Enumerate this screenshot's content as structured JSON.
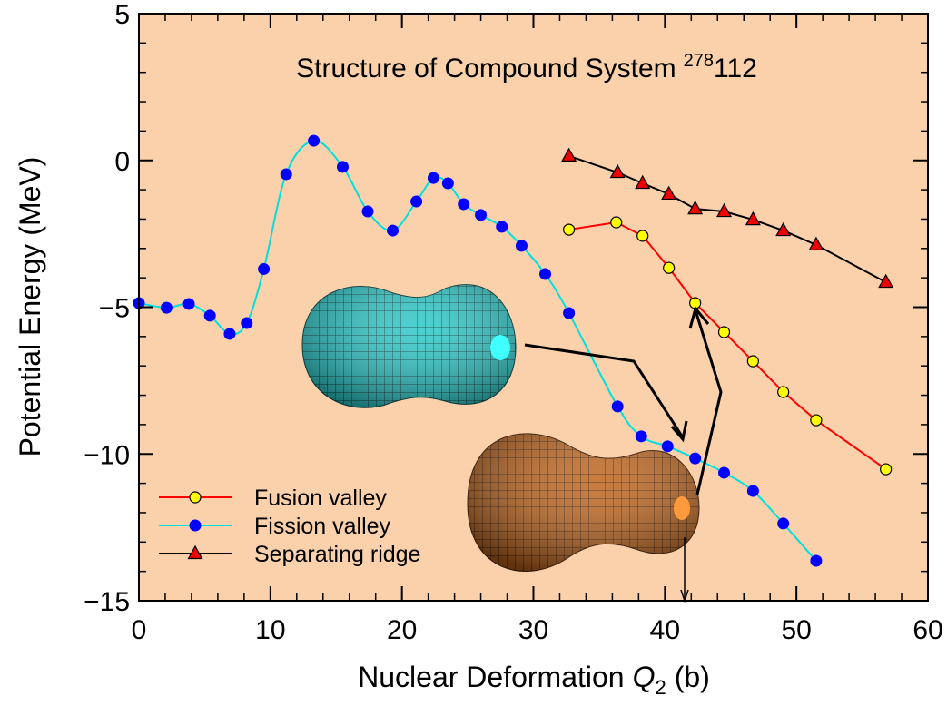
{
  "chart_data": {
    "type": "line",
    "title": {
      "text": "Structure of Compound System",
      "superscript": "278",
      "after": "112"
    },
    "xlabel": {
      "text": "Nuclear Deformation",
      "symbol": "Q",
      "subscript": "2",
      "unit": "(b)"
    },
    "ylabel": "Potential Energy (MeV)",
    "xlim": [
      0,
      60
    ],
    "ylim": [
      -15,
      5
    ],
    "xticks": [
      0,
      10,
      20,
      30,
      40,
      50,
      60
    ],
    "yticks": [
      {
        "value": -15,
        "label": "−15"
      },
      {
        "value": -10,
        "label": "−10"
      },
      {
        "value": -5,
        "label": "−5"
      },
      0,
      5
    ],
    "xminorticks": [
      2,
      4,
      6,
      8,
      12,
      14,
      16,
      18,
      22,
      24,
      26,
      28,
      32,
      34,
      36,
      38,
      42,
      44,
      46,
      48,
      52,
      54,
      56,
      58
    ],
    "yminorticks": [
      -14,
      -13,
      -12,
      -11,
      -9,
      -8,
      -7,
      -6,
      -4,
      -3,
      -2,
      -1,
      1,
      2,
      3,
      4
    ],
    "background": "#fad1aa",
    "legend": "lower left",
    "series": [
      {
        "name": "Fusion valley",
        "color": "#ff0000",
        "marker": "circle",
        "marker_color": "#ffff00",
        "smooth": false,
        "x": [
          32.7,
          36.3,
          38.3,
          40.3,
          42.3,
          44.5,
          46.7,
          49.0,
          51.5,
          56.8
        ],
        "values": [
          -2.36,
          -2.11,
          -2.57,
          -3.66,
          -4.86,
          -5.85,
          -6.84,
          -7.89,
          -8.85,
          -10.52
        ]
      },
      {
        "name": "Fission valley",
        "color": "#00e0e0",
        "marker": "circle",
        "marker_color": "#0000ff",
        "smooth": true,
        "x": [
          0,
          2.1,
          3.8,
          5.4,
          6.9,
          8.2,
          9.5,
          11.2,
          13.3,
          15.5,
          17.4,
          19.3,
          21.1,
          22.4,
          23.5,
          24.7,
          26.0,
          27.6,
          29.1,
          30.9,
          32.7,
          36.4,
          38.2,
          40.2,
          42.3,
          44.5,
          46.7,
          49.0,
          51.5
        ],
        "values": [
          -4.86,
          -5.02,
          -4.89,
          -5.29,
          -5.91,
          -5.54,
          -3.7,
          -0.47,
          0.67,
          -0.22,
          -1.74,
          -2.39,
          -1.4,
          -0.6,
          -0.78,
          -1.49,
          -1.86,
          -2.26,
          -2.91,
          -3.87,
          -5.2,
          -8.38,
          -9.4,
          -9.74,
          -10.15,
          -10.64,
          -11.26,
          -12.37,
          -13.64
        ]
      },
      {
        "name": "Separating ridge",
        "color": "#000000",
        "marker": "triangle",
        "marker_color": "#ee0000",
        "smooth": false,
        "x": [
          32.7,
          36.4,
          38.3,
          40.3,
          42.3,
          44.5,
          46.7,
          49.0,
          51.5,
          56.8
        ],
        "values": [
          0.15,
          -0.41,
          -0.78,
          -1.15,
          -1.65,
          -1.74,
          -2.02,
          -2.39,
          -2.88,
          -4.15
        ]
      }
    ]
  }
}
